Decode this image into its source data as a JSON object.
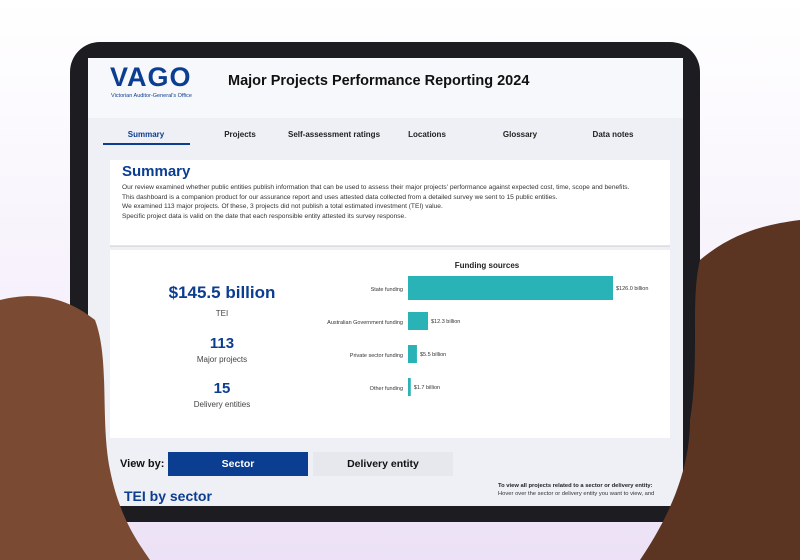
{
  "header": {
    "logo": "VAGO",
    "logo_subtitle": "Victorian Auditor-General's Office",
    "title": "Major Projects Performance Reporting 2024"
  },
  "nav": [
    "Summary",
    "Projects",
    "Self-assessment ratings",
    "Locations",
    "Glossary",
    "Data notes"
  ],
  "summary": {
    "heading": "Summary",
    "paragraphs": [
      "Our review examined whether public entities publish information that can be used to assess their major projects' performance against expected cost, time, scope and benefits.",
      "This dashboard is a companion product for our assurance report and uses attested data collected from a detailed survey we sent to 15 public entities.",
      "We examined 113 major projects. Of these, 3 projects did not publish a total estimated investment (TEI) value.",
      "Specific project data is valid on the date that each responsible entity attested its survey response."
    ]
  },
  "stats": [
    {
      "value": "$145.5 billion",
      "label": "TEI"
    },
    {
      "value": "113",
      "label": "Major projects"
    },
    {
      "value": "15",
      "label": "Delivery entities"
    }
  ],
  "chart_data": {
    "type": "bar",
    "orientation": "horizontal",
    "title": "Funding sources",
    "categories": [
      "State funding",
      "Australian Government funding",
      "Private sector funding",
      "Other funding"
    ],
    "values": [
      126.0,
      12.3,
      5.5,
      1.7
    ],
    "value_labels": [
      "$126.0 billion",
      "$12.3 billion",
      "$5.5 billion",
      "$1.7 billion"
    ],
    "color": "#2ab3b6"
  },
  "view_by": {
    "label": "View by:",
    "options": [
      "Sector",
      "Delivery entity"
    ]
  },
  "tei_heading": "TEI by sector",
  "instructions": {
    "title": "To view all projects related to a sector or delivery entity:",
    "text": "Hover over the sector or delivery entity you want to view, and"
  }
}
